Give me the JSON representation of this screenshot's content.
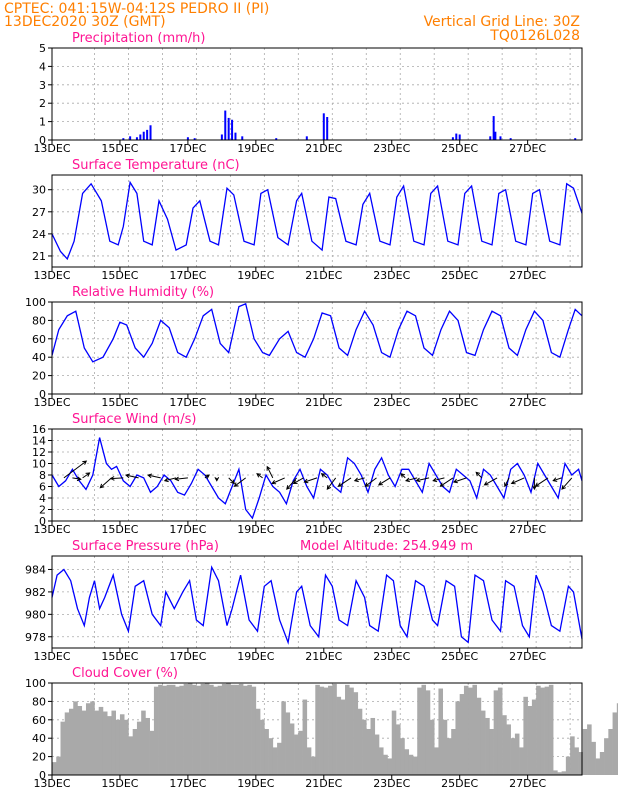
{
  "header": {
    "line1_left": "CPTEC:   041:15W-04:12S   PEDRO II (PI)",
    "line2_left": "13DEC2020 30Z (GMT)",
    "line1_right": "Vertical Grid Line: 30Z",
    "line2_right": "TQ0126L028"
  },
  "colors": {
    "header": "#ff7f00",
    "titles": "#ff1493",
    "series": "#0000ff",
    "cloud": "#a9a9a9",
    "grid": "#aaaaaa",
    "wind_arrows": "#000000"
  },
  "chart_data": [
    {
      "type": "bar",
      "title": "Precipitation (mm/h)",
      "x_day_start": 13,
      "x_day_end": 28.6,
      "x_tick_labels": [
        "13DEC",
        "15DEC",
        "17DEC",
        "19DEC",
        "21DEC",
        "23DEC",
        "25DEC",
        "27DEC"
      ],
      "ylim": [
        0,
        5
      ],
      "y_ticks": [
        0,
        1,
        2,
        3,
        4,
        5
      ],
      "grid": true,
      "bars": [
        [
          15.1,
          0.1
        ],
        [
          15.3,
          0.2
        ],
        [
          15.5,
          0.15
        ],
        [
          15.6,
          0.3
        ],
        [
          15.7,
          0.45
        ],
        [
          15.8,
          0.55
        ],
        [
          15.9,
          0.8
        ],
        [
          17.0,
          0.15
        ],
        [
          17.2,
          0.1
        ],
        [
          18.0,
          0.3
        ],
        [
          18.1,
          1.6
        ],
        [
          18.2,
          1.2
        ],
        [
          18.3,
          1.1
        ],
        [
          18.4,
          0.4
        ],
        [
          18.6,
          0.2
        ],
        [
          19.6,
          0.1
        ],
        [
          20.5,
          0.2
        ],
        [
          21.0,
          1.45
        ],
        [
          21.1,
          1.25
        ],
        [
          24.8,
          0.15
        ],
        [
          24.9,
          0.35
        ],
        [
          25.0,
          0.3
        ],
        [
          25.9,
          0.2
        ],
        [
          26.0,
          1.3
        ],
        [
          26.05,
          0.45
        ],
        [
          26.2,
          0.2
        ],
        [
          26.5,
          0.1
        ],
        [
          28.4,
          0.1
        ]
      ]
    },
    {
      "type": "line",
      "title": "Surface Temperature (nC)",
      "x_tick_labels": [
        "13DEC",
        "15DEC",
        "17DEC",
        "19DEC",
        "21DEC",
        "23DEC",
        "25DEC",
        "27DEC"
      ],
      "ylim": [
        19.5,
        32
      ],
      "y_ticks": [
        21,
        24,
        27,
        30
      ],
      "grid": true,
      "series": [
        {
          "x": [
            13.0,
            13.25,
            13.45,
            13.65,
            13.9,
            14.15,
            14.45,
            14.7,
            14.95,
            15.1,
            15.3,
            15.5,
            15.7,
            15.95,
            16.15,
            16.4,
            16.65,
            16.95,
            17.15,
            17.35,
            17.65,
            17.9,
            18.15,
            18.35,
            18.65,
            18.95,
            19.15,
            19.35,
            19.65,
            19.95,
            20.2,
            20.35,
            20.65,
            20.95,
            21.15,
            21.35,
            21.65,
            21.95,
            22.15,
            22.35,
            22.65,
            22.95,
            23.15,
            23.35,
            23.65,
            23.95,
            24.15,
            24.35,
            24.65,
            24.95,
            25.15,
            25.35,
            25.65,
            25.95,
            26.15,
            26.35,
            26.65,
            26.95,
            27.15,
            27.35,
            27.65,
            27.95,
            28.15,
            28.35,
            28.6
          ],
          "y": [
            24.0,
            21.6,
            20.6,
            23.0,
            29.5,
            30.8,
            28.5,
            23.0,
            22.5,
            25.0,
            31.0,
            29.5,
            23.0,
            22.5,
            28.5,
            26.0,
            21.8,
            22.5,
            27.5,
            28.5,
            23.0,
            22.5,
            30.2,
            29.3,
            23.0,
            22.5,
            29.5,
            30.0,
            23.5,
            22.5,
            28.5,
            29.5,
            23.0,
            21.8,
            29.0,
            28.8,
            23.0,
            22.5,
            28.0,
            29.5,
            23.0,
            22.5,
            29.0,
            30.5,
            23.0,
            22.5,
            29.5,
            30.5,
            23.0,
            22.5,
            29.5,
            30.5,
            23.0,
            22.5,
            29.5,
            30.0,
            23.0,
            22.5,
            29.5,
            30.0,
            23.0,
            22.5,
            30.8,
            30.2,
            26.8
          ]
        }
      ]
    },
    {
      "type": "line",
      "title": "Relative Humidity (%)",
      "x_tick_labels": [
        "13DEC",
        "15DEC",
        "17DEC",
        "19DEC",
        "21DEC",
        "23DEC",
        "25DEC",
        "27DEC"
      ],
      "ylim": [
        0,
        100
      ],
      "y_ticks": [
        0,
        20,
        40,
        60,
        80,
        100
      ],
      "grid": true,
      "series": [
        {
          "x": [
            13.0,
            13.2,
            13.45,
            13.7,
            13.95,
            14.2,
            14.5,
            14.8,
            15.0,
            15.2,
            15.45,
            15.7,
            15.95,
            16.2,
            16.45,
            16.7,
            16.95,
            17.2,
            17.45,
            17.7,
            17.95,
            18.2,
            18.5,
            18.7,
            18.95,
            19.2,
            19.4,
            19.7,
            19.95,
            20.2,
            20.45,
            20.7,
            20.95,
            21.2,
            21.45,
            21.7,
            21.95,
            22.2,
            22.45,
            22.7,
            22.95,
            23.2,
            23.45,
            23.7,
            23.95,
            24.2,
            24.45,
            24.7,
            24.95,
            25.2,
            25.45,
            25.7,
            25.95,
            26.2,
            26.45,
            26.7,
            26.95,
            27.2,
            27.45,
            27.7,
            27.95,
            28.2,
            28.4,
            28.6
          ],
          "y": [
            42,
            70,
            85,
            90,
            50,
            35,
            40,
            60,
            78,
            75,
            50,
            40,
            55,
            80,
            72,
            45,
            40,
            60,
            85,
            92,
            55,
            45,
            95,
            98,
            60,
            45,
            42,
            60,
            68,
            45,
            40,
            60,
            88,
            85,
            50,
            42,
            70,
            90,
            75,
            45,
            40,
            70,
            90,
            85,
            50,
            42,
            70,
            90,
            80,
            45,
            42,
            70,
            90,
            85,
            50,
            42,
            70,
            90,
            80,
            45,
            40,
            70,
            92,
            85
          ]
        }
      ]
    },
    {
      "type": "line",
      "title": "Surface Wind (m/s)",
      "x_tick_labels": [
        "13DEC",
        "15DEC",
        "17DEC",
        "19DEC",
        "21DEC",
        "23DEC",
        "25DEC",
        "27DEC"
      ],
      "ylim": [
        0,
        16
      ],
      "y_ticks": [
        0,
        2,
        4,
        6,
        8,
        10,
        12,
        14,
        16
      ],
      "grid": true,
      "series": [
        {
          "x": [
            13.0,
            13.2,
            13.4,
            13.6,
            13.8,
            14.0,
            14.2,
            14.4,
            14.6,
            14.75,
            14.9,
            15.1,
            15.3,
            15.5,
            15.7,
            15.9,
            16.1,
            16.3,
            16.5,
            16.7,
            16.9,
            17.1,
            17.3,
            17.5,
            17.7,
            17.9,
            18.1,
            18.3,
            18.5,
            18.7,
            18.9,
            19.1,
            19.3,
            19.5,
            19.7,
            19.9,
            20.1,
            20.3,
            20.5,
            20.7,
            20.9,
            21.1,
            21.3,
            21.5,
            21.7,
            21.9,
            22.1,
            22.3,
            22.5,
            22.7,
            22.9,
            23.1,
            23.3,
            23.5,
            23.7,
            23.9,
            24.1,
            24.3,
            24.5,
            24.7,
            24.9,
            25.1,
            25.3,
            25.5,
            25.7,
            25.9,
            26.1,
            26.3,
            26.5,
            26.7,
            26.9,
            27.1,
            27.3,
            27.5,
            27.7,
            27.9,
            28.1,
            28.3,
            28.5,
            28.6
          ],
          "y": [
            8,
            6,
            7,
            9,
            7,
            5.5,
            8,
            14.5,
            10,
            9,
            9.5,
            7,
            6,
            8,
            7.5,
            5,
            6,
            8,
            7,
            5,
            4.5,
            6.5,
            9,
            8,
            6,
            4,
            3,
            6,
            9,
            2,
            0.5,
            4,
            8,
            6,
            5,
            3,
            7,
            9,
            6,
            4,
            9,
            8,
            6,
            5,
            11,
            10,
            8,
            5,
            9,
            11,
            8,
            6,
            9,
            9,
            7,
            5,
            10,
            8,
            6,
            5,
            9,
            8,
            7,
            4,
            9,
            8,
            6,
            4,
            9,
            10,
            8,
            5,
            10,
            8,
            6,
            4,
            10,
            8,
            9,
            7
          ]
        }
      ],
      "wind_arrows": [
        [
          13.35,
          1.6,
          1.2
        ],
        [
          13.6,
          0.6,
          -0.1
        ],
        [
          13.9,
          0.5,
          0.35
        ],
        [
          14.75,
          -0.8,
          -0.7
        ],
        [
          15.1,
          -0.9,
          -0.05
        ],
        [
          15.55,
          -0.9,
          0.2
        ],
        [
          16.2,
          -0.9,
          0.2
        ],
        [
          16.65,
          -0.8,
          -0.2
        ],
        [
          17.0,
          -0.9,
          -0.1
        ],
        [
          17.5,
          0.3,
          0.2
        ],
        [
          17.85,
          0.0,
          -0.2
        ],
        [
          18.2,
          0.4,
          -0.4
        ],
        [
          18.7,
          -0.8,
          -0.6
        ],
        [
          19.2,
          -0.4,
          0.3
        ],
        [
          19.5,
          -0.4,
          0.8
        ],
        [
          19.85,
          -0.9,
          -0.4
        ],
        [
          20.2,
          -0.7,
          -0.8
        ],
        [
          20.4,
          -0.7,
          -0.4
        ],
        [
          20.8,
          -0.9,
          -0.3
        ],
        [
          21.1,
          -0.4,
          0.3
        ],
        [
          21.35,
          -0.6,
          -0.8
        ],
        [
          21.8,
          -0.9,
          -0.6
        ],
        [
          22.2,
          -0.7,
          -0.2
        ],
        [
          22.55,
          -0.8,
          -0.6
        ],
        [
          22.95,
          -0.8,
          -0.5
        ],
        [
          23.4,
          -0.3,
          0.3
        ],
        [
          23.75,
          -0.8,
          -0.2
        ],
        [
          24.1,
          -0.9,
          -0.2
        ],
        [
          24.55,
          -0.8,
          -0.2
        ],
        [
          24.8,
          -0.9,
          -0.6
        ],
        [
          25.2,
          -0.9,
          -0.3
        ],
        [
          25.65,
          -0.4,
          0.4
        ],
        [
          26.1,
          -0.9,
          -0.5
        ],
        [
          26.45,
          -0.3,
          -0.6
        ],
        [
          26.9,
          -0.9,
          -0.4
        ],
        [
          27.2,
          0.0,
          -0.8
        ],
        [
          27.6,
          -0.9,
          -0.6
        ],
        [
          28.0,
          -0.6,
          -0.2
        ],
        [
          28.3,
          -0.7,
          -0.8
        ]
      ]
    },
    {
      "type": "line",
      "title": "Surface Pressure (hPa)",
      "annotation": "Model Altitude: 254.949  m",
      "x_tick_labels": [
        "13DEC",
        "15DEC",
        "17DEC",
        "19DEC",
        "21DEC",
        "23DEC",
        "25DEC",
        "27DEC"
      ],
      "ylim": [
        977,
        985.2
      ],
      "y_ticks": [
        978,
        980,
        982,
        984
      ],
      "grid": true,
      "series": [
        {
          "x": [
            13.0,
            13.15,
            13.35,
            13.55,
            13.75,
            13.95,
            14.1,
            14.25,
            14.4,
            14.55,
            14.8,
            15.05,
            15.25,
            15.45,
            15.7,
            15.95,
            16.2,
            16.35,
            16.6,
            16.85,
            17.05,
            17.25,
            17.45,
            17.7,
            17.9,
            18.15,
            18.3,
            18.55,
            18.8,
            19.05,
            19.25,
            19.45,
            19.7,
            19.95,
            20.2,
            20.35,
            20.6,
            20.85,
            21.05,
            21.25,
            21.45,
            21.7,
            21.95,
            22.2,
            22.35,
            22.6,
            22.85,
            23.05,
            23.25,
            23.45,
            23.7,
            23.95,
            24.2,
            24.35,
            24.6,
            24.85,
            25.05,
            25.25,
            25.45,
            25.7,
            25.95,
            26.2,
            26.35,
            26.6,
            26.85,
            27.05,
            27.25,
            27.45,
            27.7,
            27.95,
            28.2,
            28.35,
            28.6
          ],
          "y": [
            981.5,
            983.5,
            984.0,
            983.0,
            980.5,
            979.0,
            981.5,
            983.0,
            980.5,
            981.5,
            983.5,
            980.0,
            978.5,
            982.5,
            983.0,
            980.0,
            979.0,
            982.0,
            980.5,
            982.0,
            983.0,
            979.5,
            979.0,
            984.2,
            983.0,
            979.0,
            980.5,
            983.5,
            979.5,
            978.5,
            982.5,
            983.0,
            979.5,
            977.5,
            982.0,
            982.5,
            979.0,
            978.0,
            983.5,
            982.5,
            979.5,
            979.0,
            983.0,
            981.5,
            979.0,
            978.5,
            983.5,
            983.0,
            979.0,
            978.0,
            983.0,
            982.5,
            979.5,
            979.0,
            983.0,
            982.5,
            978.0,
            977.5,
            983.5,
            983.0,
            979.5,
            978.5,
            983.0,
            982.5,
            979.0,
            978.0,
            983.5,
            982.0,
            979.0,
            978.5,
            982.5,
            982.0,
            977.8
          ]
        }
      ]
    },
    {
      "type": "bar",
      "title": "Cloud Cover (%)",
      "x_tick_labels": [
        "13DEC",
        "15DEC",
        "17DEC",
        "19DEC",
        "21DEC",
        "23DEC",
        "25DEC",
        "27DEC"
      ],
      "ylim": [
        0,
        100
      ],
      "y_ticks": [
        0,
        20,
        40,
        60,
        80,
        100
      ],
      "grid": true,
      "samples_x_start": 13.0,
      "samples_dx": 0.125,
      "values": [
        14,
        20,
        58,
        68,
        72,
        80,
        75,
        70,
        78,
        80,
        70,
        74,
        69,
        64,
        70,
        60,
        66,
        60,
        42,
        50,
        58,
        70,
        62,
        48,
        96,
        98,
        97,
        98,
        98,
        96,
        97,
        99,
        100,
        98,
        97,
        99,
        100,
        98,
        96,
        97,
        99,
        100,
        98,
        98,
        99,
        97,
        98,
        96,
        72,
        60,
        50,
        40,
        30,
        35,
        80,
        68,
        56,
        44,
        48,
        82,
        30,
        20,
        98,
        96,
        95,
        97,
        99,
        85,
        82,
        98,
        95,
        90,
        72,
        60,
        50,
        62,
        44,
        30,
        22,
        18,
        70,
        55,
        40,
        28,
        22,
        20,
        95,
        98,
        92,
        60,
        30,
        94,
        60,
        40,
        50,
        80,
        88,
        97,
        95,
        98,
        84,
        70,
        62,
        50,
        92,
        95,
        65,
        55,
        40,
        45,
        30,
        85,
        75,
        82,
        97,
        95,
        96,
        98,
        5,
        3,
        4,
        20,
        42,
        30,
        25,
        50,
        55,
        36,
        18,
        25,
        40,
        50,
        68,
        78,
        92,
        88,
        95,
        82,
        75,
        94,
        70,
        64,
        42,
        62,
        55,
        30,
        45,
        55,
        20,
        40,
        74,
        92,
        98,
        97,
        30,
        10,
        75,
        85,
        96,
        99,
        96,
        40,
        35,
        60,
        95,
        85,
        60,
        50,
        80,
        96,
        88,
        68,
        90,
        75,
        20,
        92,
        96,
        92,
        90,
        65,
        85,
        92,
        96,
        92,
        94,
        78,
        92,
        94
      ]
    }
  ]
}
